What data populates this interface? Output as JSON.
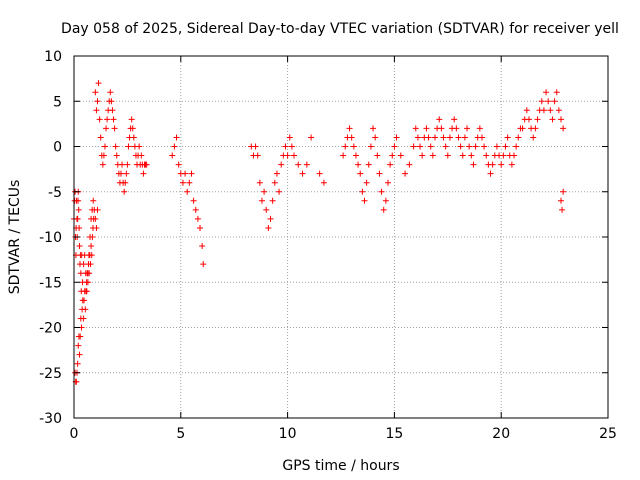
{
  "chart_data": {
    "type": "scatter",
    "title": "Day 058 of 2025, Sidereal Day-to-day VTEC variation (SDTVAR) for receiver yell",
    "xlabel": "GPS time / hours",
    "ylabel": "SDTVAR / TECUs",
    "xlim": [
      0,
      25
    ],
    "ylim": [
      -30,
      10
    ],
    "xticks": [
      0,
      5,
      10,
      15,
      20,
      25
    ],
    "yticks": [
      -30,
      -25,
      -20,
      -15,
      -10,
      -5,
      0,
      5,
      10
    ],
    "grid": true,
    "marker": "+",
    "colors": {
      "series": "#ff0000",
      "grid": "#a0a0a0",
      "axis": "#000000"
    },
    "series": [
      {
        "name": "SDTVAR",
        "x": [
          0.0,
          0.03,
          0.05,
          0.07,
          0.09,
          0.1,
          0.12,
          0.14,
          0.15,
          0.17,
          0.19,
          0.2,
          0.22,
          0.24,
          0.26,
          0.28,
          0.3,
          0.32,
          0.34,
          0.36,
          0.05,
          0.08,
          0.11,
          0.14,
          0.17,
          0.2,
          0.23,
          0.26,
          0.29,
          0.32,
          0.35,
          0.38,
          0.41,
          0.44,
          0.47,
          0.5,
          0.53,
          0.56,
          0.59,
          0.62,
          0.65,
          0.68,
          0.71,
          0.74,
          0.77,
          0.8,
          0.83,
          0.86,
          0.89,
          0.92,
          0.4,
          0.45,
          0.5,
          0.55,
          0.6,
          0.65,
          0.7,
          0.75,
          0.8,
          0.85,
          0.9,
          0.95,
          1.0,
          1.05,
          1.1,
          1.0,
          1.05,
          1.1,
          1.15,
          1.2,
          1.25,
          1.3,
          1.35,
          1.4,
          1.45,
          1.5,
          1.55,
          1.6,
          1.65,
          1.7,
          1.75,
          1.8,
          1.85,
          1.9,
          1.95,
          2.0,
          2.05,
          2.1,
          2.15,
          2.2,
          2.25,
          2.3,
          2.35,
          2.4,
          2.45,
          2.5,
          2.55,
          2.6,
          2.65,
          2.7,
          2.75,
          2.8,
          2.85,
          2.9,
          2.95,
          3.0,
          3.05,
          3.1,
          3.15,
          3.2,
          3.25,
          3.3,
          3.35,
          3.4,
          4.6,
          4.7,
          4.8,
          4.9,
          5.0,
          5.1,
          5.2,
          5.3,
          5.4,
          5.5,
          5.6,
          5.7,
          5.8,
          5.9,
          6.0,
          6.05,
          8.3,
          8.4,
          8.5,
          8.6,
          8.7,
          8.8,
          8.9,
          9.0,
          9.1,
          9.2,
          9.3,
          9.4,
          9.5,
          9.6,
          9.7,
          9.8,
          9.9,
          10.0,
          10.1,
          10.2,
          10.3,
          10.5,
          10.7,
          10.9,
          11.1,
          11.5,
          11.7,
          12.6,
          12.7,
          12.8,
          12.9,
          13.0,
          13.1,
          13.2,
          13.3,
          13.4,
          13.5,
          13.6,
          13.7,
          13.8,
          13.9,
          14.0,
          14.1,
          14.2,
          14.3,
          14.4,
          14.5,
          14.6,
          14.7,
          14.8,
          14.9,
          15.0,
          15.1,
          15.3,
          15.5,
          15.7,
          15.9,
          16.0,
          16.1,
          16.2,
          16.3,
          16.4,
          16.5,
          16.6,
          16.7,
          16.8,
          16.9,
          17.0,
          17.1,
          17.2,
          17.3,
          17.4,
          17.5,
          17.6,
          17.7,
          17.8,
          17.9,
          18.0,
          18.1,
          18.2,
          18.3,
          18.4,
          18.5,
          18.6,
          18.7,
          18.8,
          18.9,
          19.0,
          19.1,
          19.2,
          19.3,
          19.4,
          19.5,
          19.6,
          19.7,
          19.8,
          19.9,
          20.0,
          20.1,
          20.2,
          20.3,
          20.4,
          20.5,
          20.6,
          20.7,
          20.8,
          20.9,
          21.0,
          21.1,
          21.2,
          21.3,
          21.4,
          21.5,
          21.6,
          21.7,
          21.8,
          21.9,
          22.0,
          22.1,
          22.2,
          22.3,
          22.4,
          22.5,
          22.6,
          22.7,
          22.8,
          22.9,
          22.8,
          22.85,
          22.9
        ],
        "y": [
          -8.0,
          -6.0,
          -5.0,
          -10.0,
          -12.0,
          -9.0,
          -6.0,
          -8.0,
          -10.0,
          -8.0,
          -6.0,
          -5.0,
          -7.0,
          -9.0,
          -11.0,
          -13.0,
          -12.0,
          -14.0,
          -16.0,
          -12.0,
          -25.0,
          -26.0,
          -26.0,
          -25.0,
          -24.0,
          -22.0,
          -21.0,
          -23.0,
          -21.0,
          -19.0,
          -20.0,
          -18.0,
          -17.0,
          -19.0,
          -17.0,
          -16.0,
          -18.0,
          -16.0,
          -15.0,
          -14.0,
          -15.0,
          -13.0,
          -14.0,
          -12.0,
          -13.0,
          -11.0,
          -12.0,
          -10.0,
          -9.0,
          -8.0,
          -15.0,
          -13.0,
          -12.0,
          -14.0,
          -16.0,
          -14.0,
          -12.0,
          -10.0,
          -8.0,
          -7.0,
          -6.0,
          -7.0,
          -8.0,
          -9.0,
          -7.0,
          6.0,
          4.0,
          5.0,
          7.0,
          3.0,
          1.0,
          -1.0,
          -2.0,
          -1.0,
          0.0,
          2.0,
          3.0,
          4.0,
          5.0,
          6.0,
          5.0,
          4.0,
          3.0,
          2.0,
          0.0,
          -1.0,
          -2.0,
          -3.0,
          -4.0,
          -3.0,
          -2.0,
          -4.0,
          -5.0,
          -4.0,
          -3.0,
          -2.0,
          0.0,
          1.0,
          2.0,
          3.0,
          2.0,
          1.0,
          0.0,
          -1.0,
          -2.0,
          -1.0,
          0.0,
          -2.0,
          -1.0,
          -2.0,
          -3.0,
          -2.0,
          -2.0,
          -2.0,
          -1.0,
          0.0,
          1.0,
          -2.0,
          -3.0,
          -4.0,
          -3.0,
          -5.0,
          -4.0,
          -3.0,
          -6.0,
          -7.0,
          -8.0,
          -9.0,
          -11.0,
          -13.0,
          0.0,
          -1.0,
          0.0,
          -1.0,
          -4.0,
          -6.0,
          -5.0,
          -7.0,
          -9.0,
          -8.0,
          -6.0,
          -4.0,
          -3.0,
          -5.0,
          -2.0,
          -1.0,
          0.0,
          -1.0,
          1.0,
          0.0,
          -1.0,
          -2.0,
          -3.0,
          -2.0,
          1.0,
          -3.0,
          -4.0,
          -1.0,
          0.0,
          1.0,
          2.0,
          1.0,
          0.0,
          -1.0,
          -2.0,
          -3.0,
          -5.0,
          -6.0,
          -4.0,
          -2.0,
          0.0,
          2.0,
          1.0,
          -1.0,
          -3.0,
          -5.0,
          -7.0,
          -6.0,
          -4.0,
          -2.0,
          -1.0,
          0.0,
          1.0,
          -1.0,
          -3.0,
          -2.0,
          0.0,
          2.0,
          1.0,
          0.0,
          -1.0,
          1.0,
          2.0,
          1.0,
          0.0,
          -1.0,
          1.0,
          2.0,
          3.0,
          2.0,
          1.0,
          0.0,
          -1.0,
          1.0,
          2.0,
          3.0,
          2.0,
          1.0,
          0.0,
          -1.0,
          1.0,
          2.0,
          0.0,
          -1.0,
          -2.0,
          0.0,
          1.0,
          2.0,
          1.0,
          0.0,
          -1.0,
          -2.0,
          -3.0,
          -2.0,
          -1.0,
          0.0,
          -1.0,
          -2.0,
          -1.0,
          0.0,
          1.0,
          -1.0,
          -2.0,
          -1.0,
          0.0,
          1.0,
          2.0,
          2.0,
          3.0,
          4.0,
          3.0,
          2.0,
          1.0,
          2.0,
          3.0,
          4.0,
          5.0,
          4.0,
          6.0,
          5.0,
          4.0,
          3.0,
          5.0,
          6.0,
          4.0,
          3.0,
          2.0,
          -6.0,
          -7.0,
          -5.0
        ]
      }
    ]
  }
}
